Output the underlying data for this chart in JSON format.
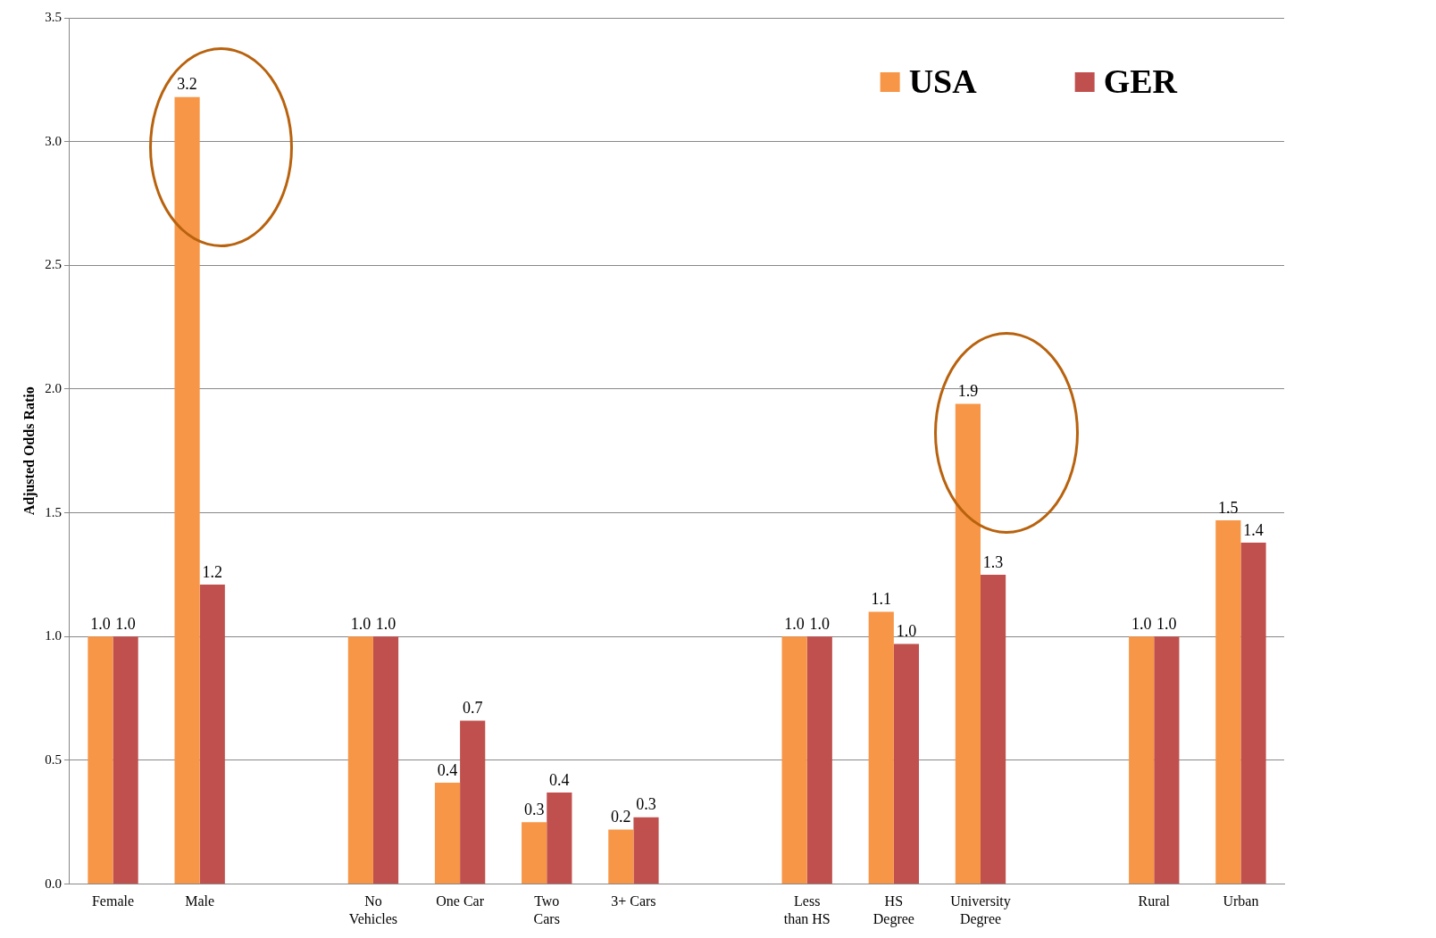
{
  "chart_data": {
    "type": "bar",
    "ylabel": "Adjusted Odds Ratio",
    "categories": [
      "Female",
      "Male",
      null,
      "No Vehicles",
      "One Car",
      "Two Cars",
      "3+ Cars",
      null,
      "Less than HS",
      "HS Degree",
      "University Degree",
      null,
      "Rural",
      "Urban"
    ],
    "series": [
      {
        "name": "USA",
        "color": "#f79646",
        "values": [
          1.0,
          3.18,
          null,
          1.0,
          0.41,
          0.25,
          0.22,
          null,
          1.0,
          1.1,
          1.94,
          null,
          1.0,
          1.47
        ],
        "value_labels": [
          "1.0",
          "3.2",
          null,
          "1.0",
          "0.4",
          "0.3",
          "0.2",
          null,
          "1.0",
          "1.1",
          "1.9",
          null,
          "1.0",
          "1.5"
        ]
      },
      {
        "name": "GER",
        "color": "#c0504d",
        "values": [
          1.0,
          1.21,
          null,
          1.0,
          0.66,
          0.37,
          0.27,
          null,
          1.0,
          0.97,
          1.25,
          null,
          1.0,
          1.38
        ],
        "value_labels": [
          "1.0",
          "1.2",
          null,
          "1.0",
          "0.7",
          "0.4",
          "0.3",
          null,
          "1.0",
          "1.0",
          "1.3",
          null,
          "1.0",
          "1.4"
        ]
      }
    ],
    "ylim": [
      0,
      3.5
    ],
    "yticks": [
      {
        "value": 0,
        "label": "0.0"
      },
      {
        "value": 0.5,
        "label": "0.5"
      },
      {
        "value": 1,
        "label": "1.0"
      },
      {
        "value": 1.5,
        "label": "1.5"
      },
      {
        "value": 2,
        "label": "2.0"
      },
      {
        "value": 2.5,
        "label": "2.5"
      },
      {
        "value": 3,
        "label": "3.0"
      },
      {
        "value": 3.5,
        "label": "3.5"
      }
    ],
    "grid": "y",
    "legend": "top right"
  }
}
